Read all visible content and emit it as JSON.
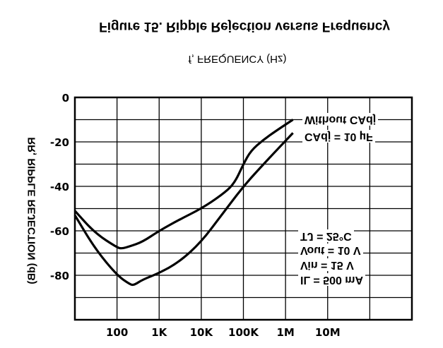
{
  "chart_data": {
    "type": "line",
    "title": "Figure 15. Ripple Rejection versus Frequency",
    "xlabel": "f, FREQUENCY (Hz)",
    "ylabel": "RR, RIPPLE REJECTION (dB)",
    "x_scale": "log",
    "xlim": [
      10,
      1000000000
    ],
    "ylim": [
      -100,
      0
    ],
    "x_tick_labels": [
      {
        "value": 100,
        "label": "100"
      },
      {
        "value": 1000,
        "label": "1K"
      },
      {
        "value": 10000,
        "label": "10K"
      },
      {
        "value": 100000,
        "label": "100K"
      },
      {
        "value": 1000000,
        "label": "1M"
      },
      {
        "value": 10000000,
        "label": "10M"
      }
    ],
    "y_tick_labels": [
      {
        "value": 0,
        "label": "0"
      },
      {
        "value": -20,
        "label": "-20"
      },
      {
        "value": -40,
        "label": "-40"
      },
      {
        "value": -60,
        "label": "-60"
      },
      {
        "value": -80,
        "label": "-80"
      }
    ],
    "grid": true,
    "text_mirrored_vertically": true,
    "series": [
      {
        "name": "Without CAdj",
        "x": [
          10,
          30,
          100,
          130,
          200,
          400,
          1000,
          3000,
          10000,
          30000,
          60000,
          100000,
          150000,
          300000,
          600000,
          1500000
        ],
        "y": [
          -51,
          -61,
          -67.5,
          -68,
          -67,
          -65,
          -60,
          -55,
          -50,
          -44,
          -39,
          -30,
          -24,
          -19,
          -15,
          -10
        ]
      },
      {
        "name": "CAdj = 10 µF",
        "x": [
          10,
          30,
          100,
          200,
          250,
          400,
          1000,
          3000,
          10000,
          30000,
          100000,
          300000,
          1500000
        ],
        "y": [
          -53,
          -68,
          -80,
          -84,
          -84.5,
          -82,
          -79,
          -74,
          -65,
          -53,
          -40,
          -30,
          -16
        ]
      }
    ],
    "annotations": {
      "conditions": [
        "TJ = 25°C",
        "Vout = 10 V",
        "Vin = 15 V",
        "IL = 500 mA"
      ]
    }
  }
}
